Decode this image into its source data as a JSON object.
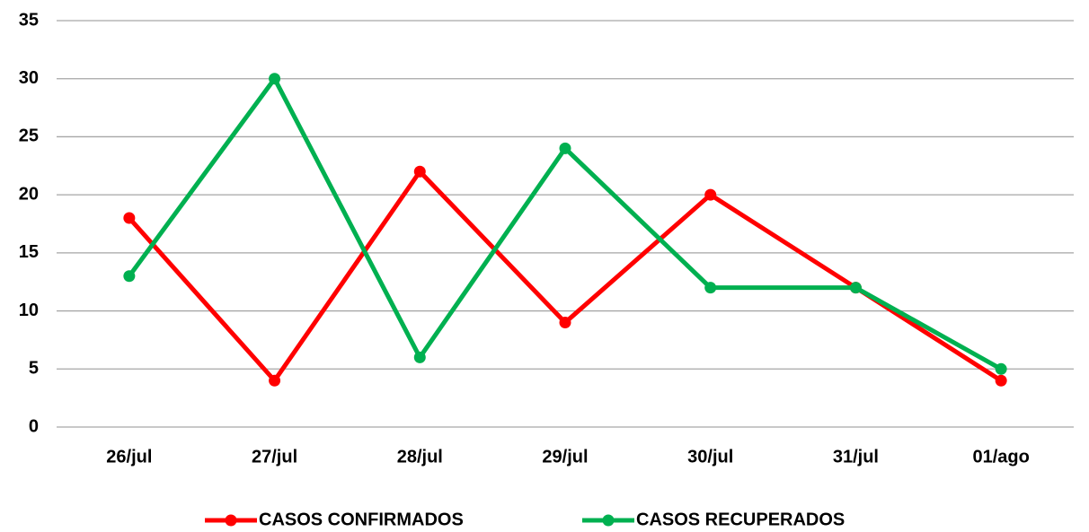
{
  "chart_data": {
    "type": "line",
    "categories": [
      "26/jul",
      "27/jul",
      "28/jul",
      "29/jul",
      "30/jul",
      "31/jul",
      "01/ago"
    ],
    "series": [
      {
        "name": "CASOS CONFIRMADOS",
        "color": "#ff0000",
        "values": [
          18,
          4,
          22,
          9,
          20,
          12,
          4
        ]
      },
      {
        "name": "CASOS RECUPERADOS",
        "color": "#00b050",
        "values": [
          13,
          30,
          6,
          24,
          12,
          12,
          5
        ]
      }
    ],
    "ylim": [
      0,
      35
    ],
    "yticks": [
      0,
      5,
      10,
      15,
      20,
      25,
      30,
      35
    ],
    "grid": true,
    "legend": "bottom"
  }
}
